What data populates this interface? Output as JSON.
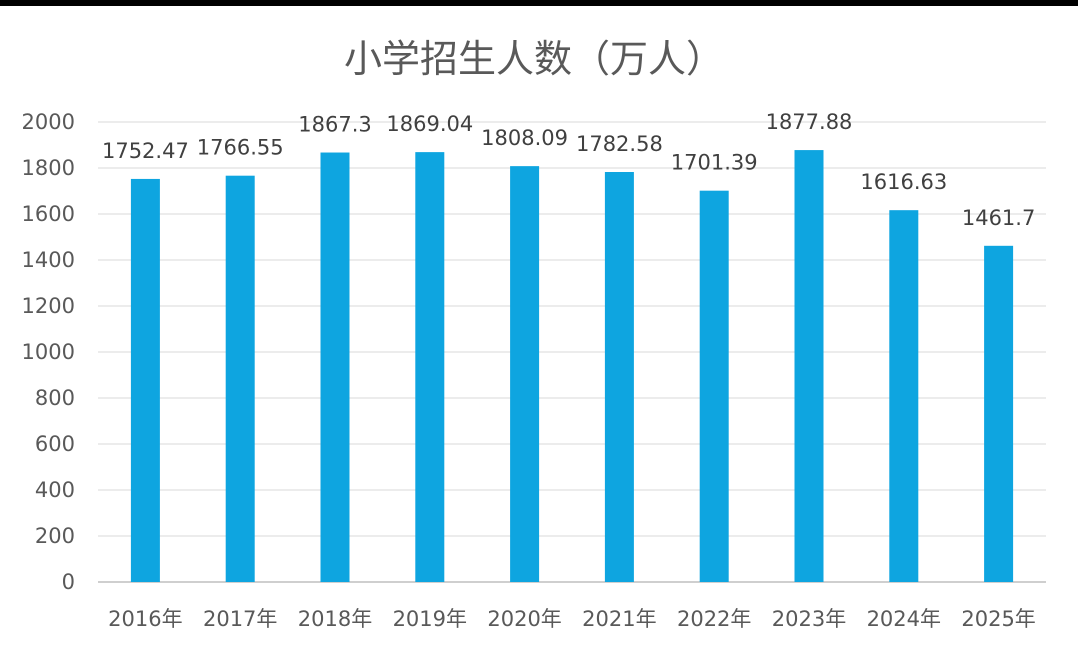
{
  "chart_data": {
    "type": "bar",
    "title": "小学招生人数（万人）",
    "categories": [
      "2016年",
      "2017年",
      "2018年",
      "2019年",
      "2020年",
      "2021年",
      "2022年",
      "2023年",
      "2024年",
      "2025年"
    ],
    "values": [
      1752.47,
      1766.55,
      1867.3,
      1869.04,
      1808.09,
      1782.58,
      1701.39,
      1877.88,
      1616.63,
      1461.7
    ],
    "data_labels": [
      "1752.47",
      "1766.55",
      "1867.3",
      "1869.04",
      "1808.09",
      "1782.58",
      "1701.39",
      "1877.88",
      "1616.63",
      "1461.7"
    ],
    "y_ticks": [
      0,
      200,
      400,
      600,
      800,
      1000,
      1200,
      1400,
      1600,
      1800,
      2000
    ],
    "ylim": [
      0,
      2000
    ],
    "grid": true,
    "legend": "none",
    "bar_color": "#0ea5e0",
    "xlabel": "",
    "ylabel": ""
  }
}
